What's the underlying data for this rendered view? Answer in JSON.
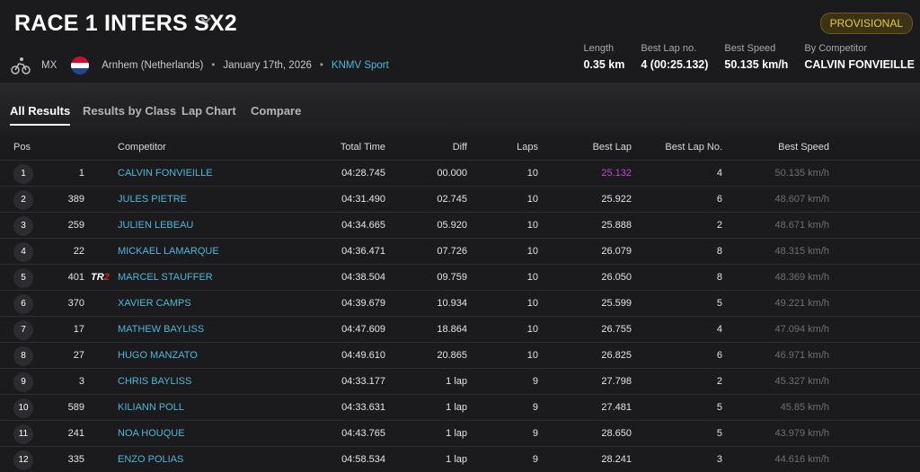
{
  "header": {
    "title": "RACE 1 INTERS SX2",
    "badge": "PROVISIONAL",
    "discipline": "MX",
    "location": "Arnhem (Netherlands)",
    "date": "January 17th, 2026",
    "organizer": "KNMV Sport",
    "separator": "•"
  },
  "stats": [
    {
      "label": "Length",
      "value": "0.35 km"
    },
    {
      "label": "Best Lap no.",
      "value": "4 (00:25.132)"
    },
    {
      "label": "Best Speed",
      "value": "50.135 km/h"
    },
    {
      "label": "By Competitor",
      "value": "CALVIN FONVIEILLE"
    }
  ],
  "tabs": [
    "All Results",
    "Results by Class",
    "Lap Chart",
    "Compare"
  ],
  "columns": {
    "pos": "Pos",
    "competitor": "Competitor",
    "total_time": "Total Time",
    "diff": "Diff",
    "laps": "Laps",
    "best_lap": "Best Lap",
    "best_lap_no": "Best Lap No.",
    "best_speed": "Best Speed"
  },
  "rows": [
    {
      "pos": "1",
      "num": "1",
      "tag": "",
      "name": "CALVIN FONVIEILLE",
      "time": "04:28.745",
      "diff": "00.000",
      "laps": "10",
      "best": "25.132",
      "bln": "4",
      "speed": "50.135 km/h"
    },
    {
      "pos": "2",
      "num": "389",
      "tag": "",
      "name": "JULES PIETRE",
      "time": "04:31.490",
      "diff": "02.745",
      "laps": "10",
      "best": "25.922",
      "bln": "6",
      "speed": "48.607 km/h"
    },
    {
      "pos": "3",
      "num": "259",
      "tag": "",
      "name": "JULIEN LEBEAU",
      "time": "04:34.665",
      "diff": "05.920",
      "laps": "10",
      "best": "25.888",
      "bln": "2",
      "speed": "48.671 km/h"
    },
    {
      "pos": "4",
      "num": "22",
      "tag": "",
      "name": "MICKAEL LAMARQUE",
      "time": "04:36.471",
      "diff": "07.726",
      "laps": "10",
      "best": "26.079",
      "bln": "8",
      "speed": "48.315 km/h"
    },
    {
      "pos": "5",
      "num": "401",
      "tag": "TR2",
      "name": "MARCEL STAUFFER",
      "time": "04:38.504",
      "diff": "09.759",
      "laps": "10",
      "best": "26.050",
      "bln": "8",
      "speed": "48.369 km/h"
    },
    {
      "pos": "6",
      "num": "370",
      "tag": "",
      "name": "XAVIER CAMPS",
      "time": "04:39.679",
      "diff": "10.934",
      "laps": "10",
      "best": "25.599",
      "bln": "5",
      "speed": "49.221 km/h"
    },
    {
      "pos": "7",
      "num": "17",
      "tag": "",
      "name": "MATHEW BAYLISS",
      "time": "04:47.609",
      "diff": "18.864",
      "laps": "10",
      "best": "26.755",
      "bln": "4",
      "speed": "47.094 km/h"
    },
    {
      "pos": "8",
      "num": "27",
      "tag": "",
      "name": "HUGO MANZATO",
      "time": "04:49.610",
      "diff": "20.865",
      "laps": "10",
      "best": "26.825",
      "bln": "6",
      "speed": "46.971 km/h"
    },
    {
      "pos": "9",
      "num": "3",
      "tag": "",
      "name": "CHRIS BAYLISS",
      "time": "04:33.177",
      "diff": "1 lap",
      "laps": "9",
      "best": "27.798",
      "bln": "2",
      "speed": "45.327 km/h"
    },
    {
      "pos": "10",
      "num": "589",
      "tag": "",
      "name": "KILIANN POLL",
      "time": "04:33.631",
      "diff": "1 lap",
      "laps": "9",
      "best": "27.481",
      "bln": "5",
      "speed": "45.85 km/h"
    },
    {
      "pos": "11",
      "num": "241",
      "tag": "",
      "name": "NOA HOUQUE",
      "time": "04:43.765",
      "diff": "1 lap",
      "laps": "9",
      "best": "28.650",
      "bln": "5",
      "speed": "43.979 km/h"
    },
    {
      "pos": "12",
      "num": "335",
      "tag": "",
      "name": "ENZO POLIAS",
      "time": "04:58.534",
      "diff": "1 lap",
      "laps": "9",
      "best": "28.241",
      "bln": "3",
      "speed": "44.616 km/h"
    }
  ],
  "colors": {
    "accent": "#4fb7d9",
    "best_lap_highlight": "#c048d0",
    "badge": "#e8c84a"
  },
  "icons": [
    "chevron-down-icon",
    "bicycle-icon",
    "netherlands-flag-icon"
  ]
}
